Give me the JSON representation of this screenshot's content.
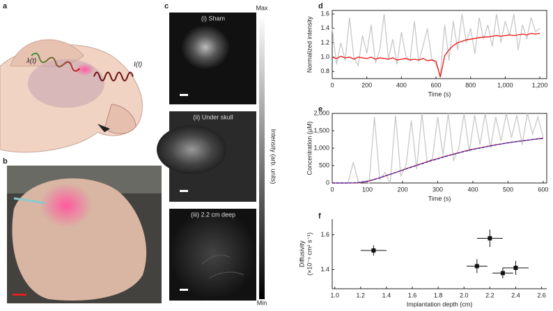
{
  "panel_labels": [
    "a",
    "b",
    "c",
    "d",
    "e",
    "f"
  ],
  "illustration": {
    "lambda": "λ(t)",
    "intensity": "I(t)"
  },
  "images": {
    "labels": [
      "(i) Sham",
      "(ii) Under skull",
      "(iii) 2.2 cm deep"
    ],
    "colorbar_max": "Max",
    "colorbar_min": "Min",
    "colorbar_label": "Intensity (arb. units)"
  },
  "chart_data": [
    {
      "type": "line",
      "xlabel": "Time (s)",
      "ylabel": [
        "Normalized intensity"
      ],
      "x": [
        0,
        25,
        50,
        75,
        100,
        125,
        150,
        175,
        200,
        225,
        250,
        275,
        300,
        325,
        350,
        375,
        400,
        425,
        450,
        475,
        500,
        525,
        550,
        575,
        600,
        625,
        650,
        675,
        700,
        725,
        750,
        775,
        800,
        825,
        850,
        875,
        900,
        925,
        950,
        975,
        1000,
        1025,
        1050,
        1075,
        1100,
        1125,
        1150,
        1175,
        1200
      ],
      "series": [
        {
          "color": "#c8c8c8",
          "values": [
            1.4,
            0.9,
            1.2,
            0.95,
            1.55,
            1.0,
            0.88,
            1.3,
            1.05,
            1.45,
            0.92,
            1.1,
            1.6,
            0.97,
            1.25,
            0.9,
            1.35,
            1.02,
            0.95,
            1.5,
            0.93,
            1.15,
            1.4,
            0.98,
            0.9,
            0.75,
            1.45,
            0.95,
            1.5,
            1.1,
            1.6,
            1.2,
            1.4,
            1.05,
            1.55,
            1.25,
            1.45,
            1.15,
            1.6,
            1.2,
            1.5,
            1.3,
            1.6,
            1.1,
            1.45,
            1.25,
            1.55,
            1.35,
            1.4
          ]
        },
        {
          "color": "#ee1111",
          "values": [
            1.0,
            0.98,
            1.01,
            0.99,
            1.0,
            0.97,
            1.0,
            0.99,
            0.98,
            1.0,
            0.97,
            0.99,
            0.98,
            0.97,
            0.99,
            0.96,
            0.97,
            0.98,
            0.96,
            0.97,
            0.96,
            0.98,
            0.95,
            0.96,
            0.94,
            0.72,
            1.02,
            1.1,
            1.16,
            1.2,
            1.22,
            1.24,
            1.25,
            1.26,
            1.27,
            1.28,
            1.28,
            1.29,
            1.3,
            1.29,
            1.3,
            1.31,
            1.3,
            1.31,
            1.32,
            1.31,
            1.33,
            1.32,
            1.33
          ]
        }
      ],
      "xlim": [
        0,
        1240
      ],
      "xticks": [
        0,
        200,
        400,
        600,
        800,
        {
          "value": 1000,
          "label": "1,000"
        },
        {
          "value": 1200,
          "label": "1,200"
        }
      ],
      "ylim": [
        0.7,
        1.65
      ],
      "yticks": [
        0.8,
        {
          "value": 1,
          "label": "1.0"
        },
        1.2,
        1.4,
        1.6
      ],
      "frame": true
    },
    {
      "type": "line",
      "xlabel": "Time (s)",
      "ylabel": [
        "Concentration (µM)"
      ],
      "x": [
        0,
        15,
        30,
        45,
        60,
        75,
        90,
        105,
        120,
        135,
        150,
        165,
        180,
        195,
        210,
        225,
        240,
        255,
        270,
        285,
        300,
        315,
        330,
        345,
        360,
        375,
        390,
        405,
        420,
        435,
        450,
        465,
        480,
        495,
        510,
        525,
        540,
        555,
        570,
        585,
        600
      ],
      "series": [
        {
          "color": "#c8c8c8",
          "values": [
            0,
            0,
            0,
            0,
            600,
            0,
            50,
            0,
            1900,
            100,
            300,
            0,
            1950,
            200,
            500,
            1800,
            400,
            2000,
            600,
            700,
            1900,
            800,
            2000,
            650,
            1000,
            2000,
            900,
            1950,
            1100,
            2000,
            1000,
            1900,
            1200,
            2000,
            1300,
            1950,
            1100,
            2000,
            1400,
            1900,
            1300
          ]
        },
        {
          "color": "#ee1111",
          "values": [
            0,
            0,
            0,
            0,
            0,
            10,
            30,
            60,
            100,
            150,
            200,
            250,
            300,
            350,
            410,
            460,
            510,
            560,
            610,
            660,
            700,
            750,
            790,
            830,
            870,
            910,
            950,
            980,
            1010,
            1040,
            1070,
            1100,
            1120,
            1150,
            1170,
            1190,
            1210,
            1230,
            1250,
            1270,
            1290
          ]
        },
        {
          "color": "#2233cc",
          "dash": true,
          "values": [
            0,
            0,
            0,
            0,
            5,
            15,
            35,
            65,
            105,
            150,
            200,
            250,
            300,
            355,
            405,
            455,
            505,
            555,
            600,
            650,
            695,
            740,
            785,
            825,
            865,
            905,
            940,
            975,
            1005,
            1035,
            1065,
            1095,
            1120,
            1145,
            1170,
            1190,
            1210,
            1230,
            1250,
            1265,
            1280
          ]
        }
      ],
      "xlim": [
        0,
        610
      ],
      "xticks": [
        0,
        100,
        200,
        300,
        400,
        500,
        600
      ],
      "ylim": [
        0,
        2000
      ],
      "yticks": [
        0,
        500,
        {
          "value": 1000,
          "label": "1,000"
        },
        {
          "value": 1500,
          "label": "1,500"
        },
        {
          "value": 2000,
          "label": "2,000"
        }
      ],
      "frame": true
    },
    {
      "type": "scatter",
      "xlabel": "Implantation depth (cm)",
      "ylabel": [
        "Diffusivity",
        "(×10⁻⁶ cm² s⁻¹)"
      ],
      "x": [
        1.3,
        2.1,
        2.2,
        2.3,
        2.4
      ],
      "values": [
        1.51,
        1.42,
        1.58,
        1.38,
        1.41
      ],
      "xerr": [
        0.1,
        0.08,
        0.1,
        0.08,
        0.1
      ],
      "yerr": [
        0.03,
        0.04,
        0.05,
        0.03,
        0.04
      ],
      "color": "#111111",
      "xlim": [
        0.98,
        2.64
      ],
      "xticks": [
        {
          "value": 1,
          "label": "1.0"
        },
        1.2,
        1.4,
        1.6,
        1.8,
        {
          "value": 2,
          "label": "2.0"
        },
        2.2,
        2.4,
        2.6
      ],
      "ylim": [
        1.29,
        1.69
      ],
      "yticks": [
        1.4,
        1.6
      ],
      "frame": false
    }
  ]
}
